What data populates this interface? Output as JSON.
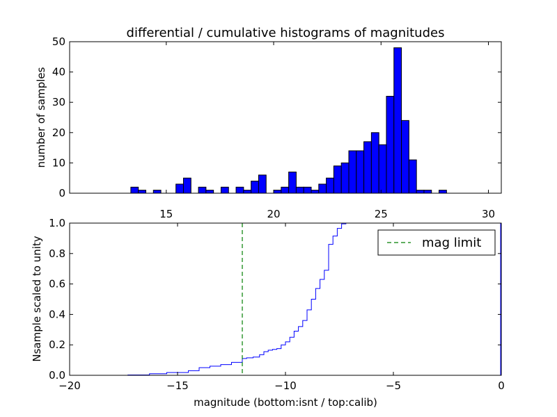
{
  "figure": {
    "title": "differential / cumulative histograms of magnitudes"
  },
  "chart_data": [
    {
      "type": "bar",
      "panel": "top",
      "title": "differential / cumulative histograms of magnitudes",
      "xlabel": "",
      "ylabel": "number of samples",
      "xlim": [
        10.5,
        30.6
      ],
      "ylim": [
        0,
        50
      ],
      "bin_width": 0.35,
      "bin_starts": [
        13.35,
        13.7,
        14.4,
        15.45,
        15.8,
        16.5,
        16.85,
        17.55,
        18.25,
        18.6,
        18.95,
        19.3,
        20.0,
        20.35,
        20.7,
        21.05,
        21.4,
        21.75,
        22.1,
        22.45,
        22.8,
        23.15,
        23.5,
        23.85,
        24.2,
        24.55,
        24.9,
        25.25,
        25.6,
        25.95,
        26.3,
        26.65,
        27.0,
        27.7
      ],
      "values": [
        2,
        1,
        1,
        3,
        5,
        2,
        1,
        2,
        2,
        1,
        4,
        6,
        1,
        2,
        7,
        2,
        2,
        1,
        3,
        5,
        9,
        10,
        14,
        14,
        17,
        20,
        16,
        32,
        48,
        24,
        11,
        1,
        1,
        1
      ],
      "xticks": [
        "15",
        "20",
        "25",
        "30"
      ],
      "yticks": [
        "0",
        "10",
        "20",
        "30",
        "40",
        "50"
      ],
      "bar_color": "#0000ff",
      "edge_color": "#000000"
    },
    {
      "type": "line",
      "panel": "bottom",
      "xlabel": "magnitude (bottom:isnt / top:calib)",
      "ylabel": "Nsample scaled to unity",
      "xlim": [
        -20,
        0
      ],
      "ylim": [
        0,
        1
      ],
      "series": [
        {
          "type": "step",
          "color": "#0000ff",
          "x": [
            -20,
            -17.3,
            -16.3,
            -15.5,
            -14.5,
            -14.0,
            -13.5,
            -13.0,
            -12.5,
            -12.0,
            -11.8,
            -11.5,
            -11.2,
            -11.0,
            -10.8,
            -10.6,
            -10.4,
            -10.2,
            -10.0,
            -9.8,
            -9.6,
            -9.4,
            -9.2,
            -9.0,
            -8.8,
            -8.6,
            -8.4,
            -8.2,
            -8.0,
            -7.8,
            -7.6,
            -7.4,
            -7.2,
            -7.0,
            -6.8,
            -6.5
          ],
          "y": [
            0,
            0.002,
            0.01,
            0.018,
            0.03,
            0.05,
            0.06,
            0.07,
            0.085,
            0.11,
            0.115,
            0.12,
            0.135,
            0.155,
            0.165,
            0.17,
            0.175,
            0.2,
            0.22,
            0.25,
            0.29,
            0.32,
            0.36,
            0.43,
            0.5,
            0.57,
            0.63,
            0.69,
            0.86,
            0.915,
            0.965,
            0.995,
            1.0,
            1.0,
            1.0,
            1.0
          ]
        },
        {
          "name": "mag limit",
          "type": "vline",
          "x": -12.0,
          "color": "#007f00",
          "style": "dashed"
        }
      ],
      "xticks": [
        "−20",
        "−15",
        "−10",
        "−5",
        "0"
      ],
      "yticks": [
        "0.0",
        "0.2",
        "0.4",
        "0.6",
        "0.8",
        "1.0"
      ],
      "legend": {
        "entries": [
          "mag limit"
        ],
        "placement": "top-right"
      }
    }
  ]
}
